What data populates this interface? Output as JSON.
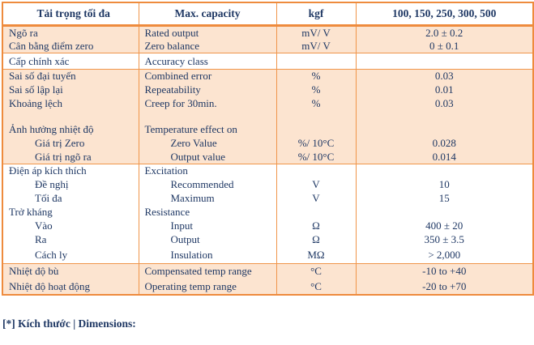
{
  "colors": {
    "border": "#F0954A",
    "border-strong": "#EE8B3D",
    "peach": "#FCE4D0",
    "navy": "#1F3864",
    "page-bg": "#FFFFFF"
  },
  "table": {
    "rows": [
      {
        "vi": "Tải trọng tối đa",
        "en": "Max. capacity",
        "unit": "kgf",
        "value": "100, 150, 250, 300, 500"
      },
      {
        "vi": "Ngõ ra",
        "en": "Rated output",
        "unit": "mV/ V",
        "value": "2.0 ± 0.2"
      },
      {
        "vi": "Cân bằng điểm zero",
        "en": "Zero balance",
        "unit": "mV/ V",
        "value": "0 ± 0.1"
      },
      {
        "vi": "Cấp chính xác",
        "en": "Accuracy class",
        "unit": "",
        "value": ""
      },
      {
        "vi": "Sai số đại tuyến",
        "en": "Combined error",
        "unit": "%",
        "value": "0.03"
      },
      {
        "vi": "Sai số lập lại",
        "en": "Repeatability",
        "unit": "%",
        "value": "0.01"
      },
      {
        "vi": "Khoảng lệch",
        "en": "Creep for 30min.",
        "unit": "%",
        "value": "0.03"
      },
      {
        "vi": "",
        "en": "",
        "unit": "",
        "value": ""
      },
      {
        "vi": "Ảnh hưởng nhiệt độ",
        "en": "Temperature effect on",
        "unit": "",
        "value": ""
      },
      {
        "vi": "Giá trị Zero",
        "en": "Zero Value",
        "unit": "%/ 10°C",
        "value": "0.028"
      },
      {
        "vi": "Giá trị ngõ ra",
        "en": "Output value",
        "unit": "%/ 10°C",
        "value": "0.014"
      },
      {
        "vi": "Điện áp kích thích",
        "en": "Excitation",
        "unit": "",
        "value": ""
      },
      {
        "vi": "Đề nghị",
        "en": "Recommended",
        "unit": "V",
        "value": "10"
      },
      {
        "vi": "Tối đa",
        "en": "Maximum",
        "unit": "V",
        "value": "15"
      },
      {
        "vi": "Trở kháng",
        "en": "Resistance",
        "unit": "",
        "value": ""
      },
      {
        "vi": "Vào",
        "en": "Input",
        "unit": "Ω",
        "value": "400 ± 20"
      },
      {
        "vi": "Ra",
        "en": "Output",
        "unit": "Ω",
        "value": "350 ± 3.5"
      },
      {
        "vi": "Cách ly",
        "en": "Insulation",
        "unit": "MΩ",
        "value": "> 2,000"
      },
      {
        "vi": "Nhiệt độ bù",
        "en": "Compensated temp range",
        "unit": "°C",
        "value": "-10 to +40"
      },
      {
        "vi": "Nhiệt độ hoạt động",
        "en": "Operating temp range",
        "unit": "°C",
        "value": "-20 to +70"
      }
    ]
  },
  "caption": "[*] Kích thước | Dimensions:"
}
